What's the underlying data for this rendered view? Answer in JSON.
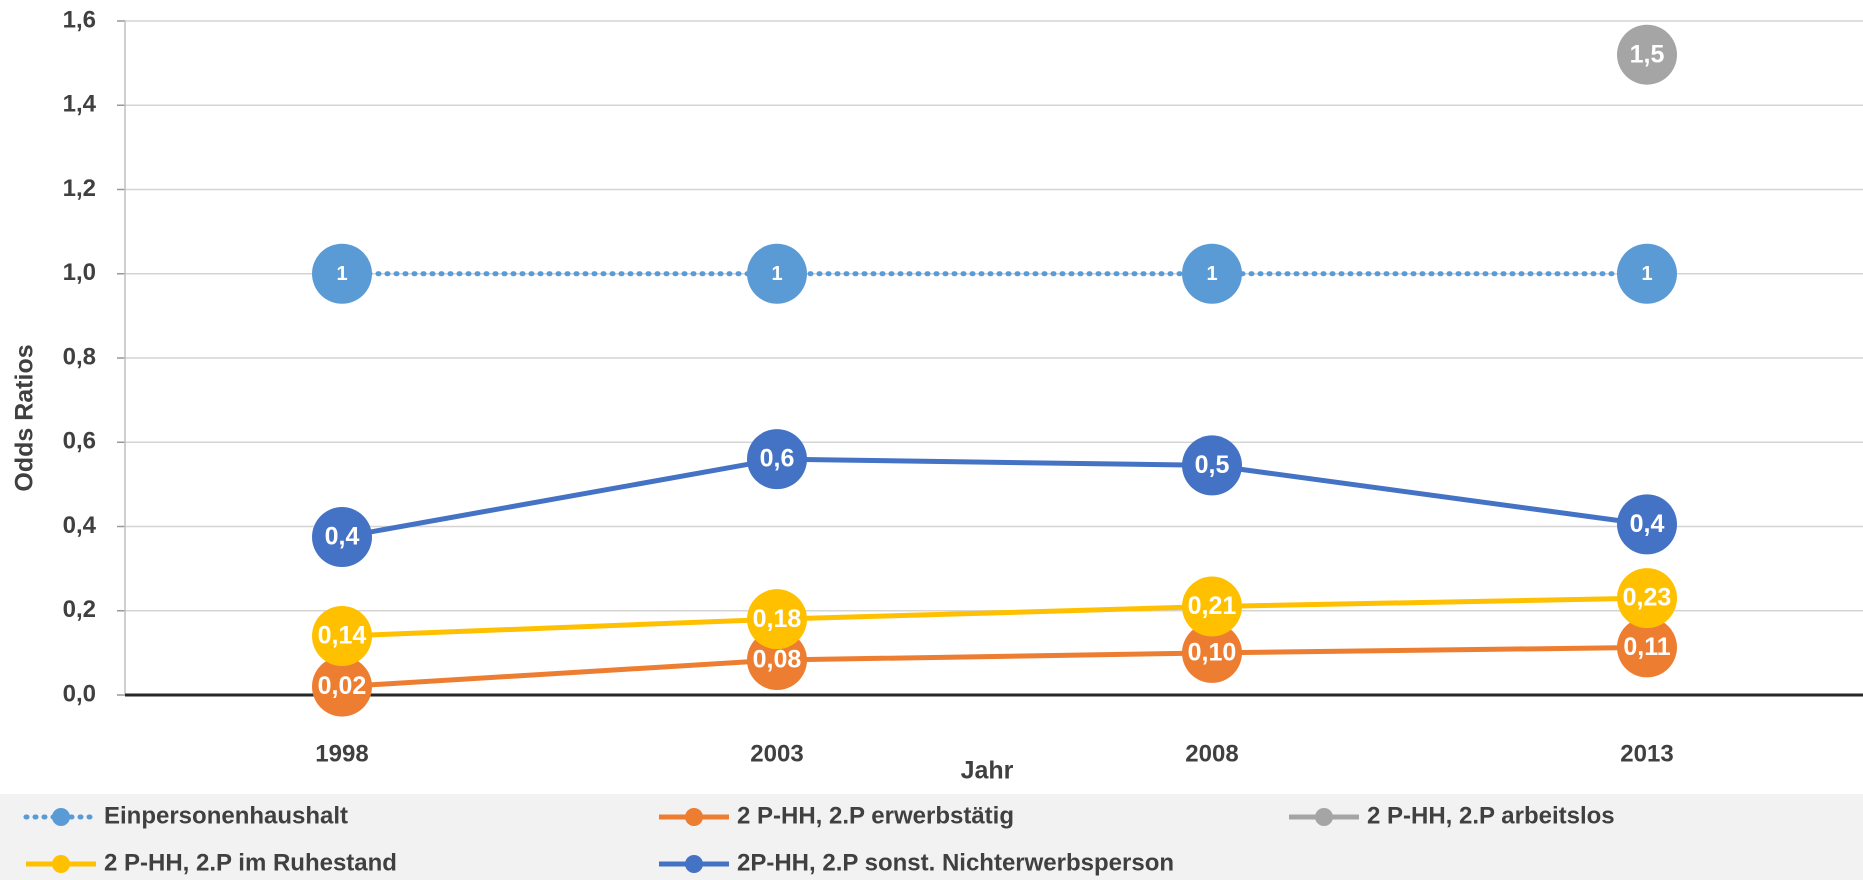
{
  "chart_data": {
    "type": "line",
    "x_label": "Jahr",
    "y_label": "Odds Ratios",
    "categories": [
      "1998",
      "2003",
      "2008",
      "2013"
    ],
    "ylim": [
      0,
      1.6
    ],
    "yticks": [
      {
        "value": 0,
        "label": "0,0"
      },
      {
        "value": 0.2,
        "label": "0,2"
      },
      {
        "value": 0.4,
        "label": "0,4"
      },
      {
        "value": 0.6,
        "label": "0,6"
      },
      {
        "value": 0.8,
        "label": "0,8"
      },
      {
        "value": 1.0,
        "label": "1,0"
      },
      {
        "value": 1.2,
        "label": "1,2"
      },
      {
        "value": 1.4,
        "label": "1,4"
      },
      {
        "value": 1.6,
        "label": "1,6"
      }
    ],
    "grid": true,
    "series": [
      {
        "name": "Einpersonenhaushalt",
        "color": "#5b9bd5",
        "style": "dotted",
        "values": [
          1,
          1,
          1,
          1
        ],
        "value_labels": [
          "1",
          "1",
          "1",
          "1"
        ]
      },
      {
        "name": "2 P-HH, 2.P erwerbstätig",
        "color": "#ed7d31",
        "style": "solid",
        "values": [
          0.02,
          0.083,
          0.1,
          0.113
        ],
        "value_labels": [
          "0,02",
          "0,08",
          "0,10",
          "0,11"
        ]
      },
      {
        "name": "2 P-HH, 2.P arbeitslos",
        "color": "#a5a5a5",
        "style": "solid",
        "values": [
          null,
          null,
          null,
          1.52
        ],
        "value_labels": [
          null,
          null,
          null,
          "1,5"
        ]
      },
      {
        "name": "2 P-HH, 2.P im Ruhestand",
        "color": "#ffc000",
        "style": "solid",
        "values": [
          0.14,
          0.18,
          0.21,
          0.23
        ],
        "value_labels": [
          "0,14",
          "0,18",
          "0,21",
          "0,23"
        ]
      },
      {
        "name": "2P-HH, 2.P sonst. Nichterwerbsperson",
        "color": "#4472c4",
        "style": "solid",
        "values": [
          0.375,
          0.56,
          0.545,
          0.405
        ],
        "value_labels": [
          "0,4",
          "0,6",
          "0,5",
          "0,4"
        ]
      }
    ]
  }
}
